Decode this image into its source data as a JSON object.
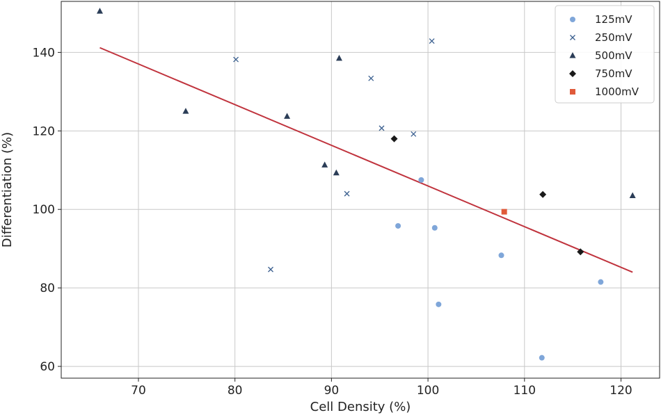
{
  "chart_data": {
    "type": "scatter",
    "xlabel": "Cell Density (%)",
    "ylabel": "Differentiation (%)",
    "xlim": [
      62,
      124
    ],
    "ylim": [
      57,
      153
    ],
    "xticks": [
      70,
      80,
      90,
      100,
      110,
      120
    ],
    "yticks": [
      60,
      80,
      100,
      120,
      140
    ],
    "grid": true,
    "legend_position": "top-right",
    "series": [
      {
        "name": "125mV",
        "marker": "circle",
        "color": "#7fa6d9",
        "points": [
          [
            99.3,
            107.5
          ],
          [
            96.9,
            95.8
          ],
          [
            100.7,
            95.3
          ],
          [
            107.6,
            88.3
          ],
          [
            101.1,
            75.8
          ],
          [
            117.9,
            81.5
          ],
          [
            111.8,
            62.2
          ]
        ]
      },
      {
        "name": "250mV",
        "marker": "x",
        "color": "#3a5f8f",
        "points": [
          [
            80.1,
            138.2
          ],
          [
            100.4,
            142.9
          ],
          [
            94.1,
            133.4
          ],
          [
            95.2,
            120.7
          ],
          [
            98.5,
            119.2
          ],
          [
            91.6,
            104.0
          ],
          [
            83.7,
            84.7
          ]
        ]
      },
      {
        "name": "500mV",
        "marker": "triangle",
        "color": "#2b3d57",
        "points": [
          [
            66.0,
            150.5
          ],
          [
            74.9,
            125.0
          ],
          [
            85.4,
            123.7
          ],
          [
            90.8,
            138.5
          ],
          [
            89.3,
            111.3
          ],
          [
            90.5,
            109.3
          ],
          [
            121.2,
            103.5
          ]
        ]
      },
      {
        "name": "750mV",
        "marker": "diamond",
        "color": "#1a1a1a",
        "points": [
          [
            96.5,
            118.0
          ],
          [
            111.9,
            103.8
          ],
          [
            115.8,
            89.2
          ]
        ]
      },
      {
        "name": "1000mV",
        "marker": "square",
        "color": "#e05a3a",
        "points": [
          [
            107.9,
            99.4
          ]
        ]
      }
    ],
    "trendline": {
      "color": "#c0333d",
      "x": [
        66.0,
        121.2
      ],
      "y": [
        141.2,
        84.0
      ]
    }
  }
}
